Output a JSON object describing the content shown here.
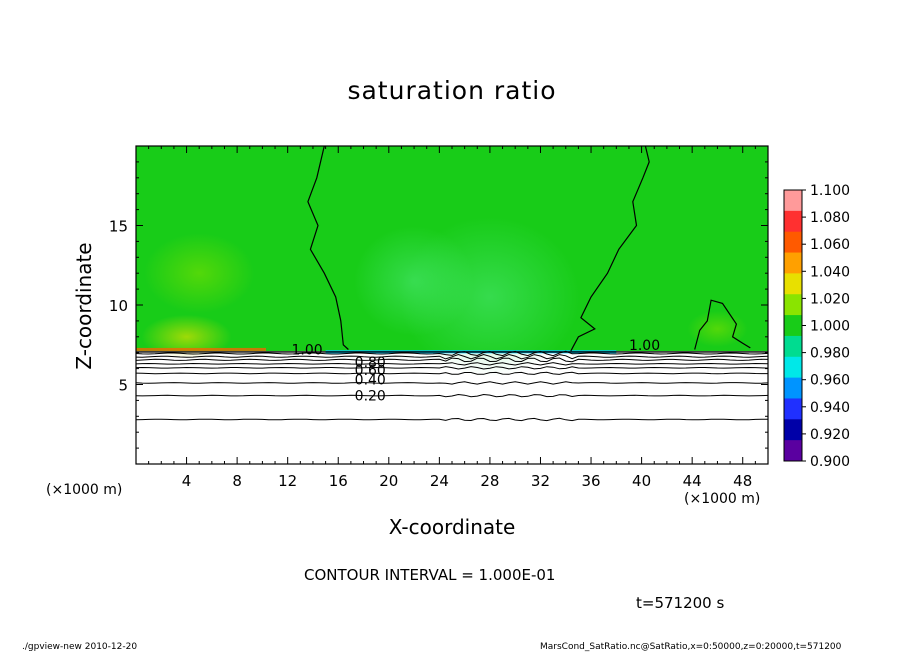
{
  "chart_data": {
    "type": "heatmap",
    "title": "saturation ratio",
    "xlabel": "X-coordinate",
    "ylabel": "Z-coordinate",
    "x_unit_left": "(×1000 m)",
    "x_unit_right": "(×1000 m)",
    "x_range": [
      0,
      50
    ],
    "y_range": [
      0,
      20
    ],
    "x_ticks": [
      "4",
      "8",
      "12",
      "16",
      "20",
      "24",
      "28",
      "32",
      "36",
      "40",
      "44",
      "48"
    ],
    "x_tick_values": [
      4,
      8,
      12,
      16,
      20,
      24,
      28,
      32,
      36,
      40,
      44,
      48
    ],
    "y_ticks": [
      "5",
      "10",
      "15"
    ],
    "y_tick_values": [
      5,
      10,
      15
    ],
    "colorbar": {
      "labels": [
        "1.100",
        "1.080",
        "1.060",
        "1.040",
        "1.020",
        "1.000",
        "0.980",
        "0.960",
        "0.940",
        "0.920",
        "0.900"
      ],
      "colors": [
        "#ff9a9a",
        "#ff3030",
        "#ff5a00",
        "#ffa000",
        "#e8e000",
        "#8ae400",
        "#18cc18",
        "#00dc90",
        "#00e8e8",
        "#0094ff",
        "#2030ff",
        "#0000a8",
        "#5a00a0"
      ]
    },
    "contour_labels": [
      {
        "text": "1.00",
        "x": 12.3,
        "y": 7.2
      },
      {
        "text": "1.00",
        "x": 39.0,
        "y": 7.5
      },
      {
        "text": "0.80",
        "x": 17.3,
        "y": 6.4
      },
      {
        "text": "0.60",
        "x": 17.3,
        "y": 5.9
      },
      {
        "text": "0.40",
        "x": 17.3,
        "y": 5.3
      },
      {
        "text": "0.20",
        "x": 17.3,
        "y": 4.3
      }
    ],
    "contour_levels_below": [
      6.95,
      6.75,
      6.55,
      6.3,
      6.05,
      5.7,
      5.1,
      4.3,
      2.8
    ]
  },
  "annotations": {
    "contour_interval": "CONTOUR INTERVAL = 1.000E-01",
    "time": "t=571200 s",
    "footer_left": "./gpview-new  2010-12-20",
    "footer_right": "MarsCond_SatRatio.nc@SatRatio,x=0:50000,z=0:20000,t=571200"
  }
}
